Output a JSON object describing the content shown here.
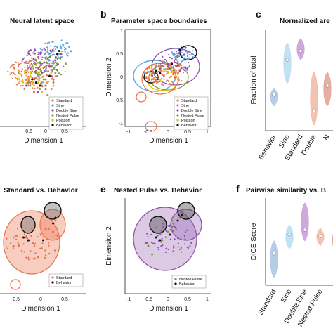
{
  "panels": {
    "a": {
      "title": "Neural latent space",
      "xlabel": "Dimension 1"
    },
    "b": {
      "letter": "b",
      "title": "Parameter space boundaries",
      "xlabel": "Dimension 1",
      "ylabel": "Dimension 2"
    },
    "c": {
      "letter": "c",
      "title": "Normalized are",
      "ylabel": "Fraction of total"
    },
    "d": {
      "title": "Standard vs. Behavior",
      "xlabel": "Dimension 1"
    },
    "e": {
      "letter": "e",
      "title": "Nested Pulse vs. Behavior",
      "xlabel": "Dimension 1",
      "ylabel": "Dimension 2"
    },
    "f": {
      "letter": "f",
      "title": "Pairwise similarity vs. B",
      "ylabel": "DICE Score"
    }
  },
  "legend_main": [
    "Standard",
    "Sine",
    "Double Sine",
    "Nested Pulse",
    "Poisson",
    "Behavior"
  ],
  "legend_d": [
    "Standard",
    "Behavior"
  ],
  "legend_e": [
    "Nested Pulse",
    "Behavior"
  ],
  "colors": {
    "standard": "#e8714a",
    "sine": "#58a8e0",
    "double_sine": "#8b4fa8",
    "nested_pulse": "#7a9a2a",
    "poisson": "#e8b800",
    "behavior": "#111111",
    "violin_behavior": "#a9c4e4",
    "violin_sine": "#b6dcf3",
    "violin_standard": "#c79ad6",
    "violin_double_sine": "#f2b7a2",
    "violin_nested_pulse": "#e3a090"
  },
  "chart_data": [
    {
      "panel": "a",
      "type": "scatter",
      "title": "Neural latent space",
      "xlabel": "Dimension 1",
      "xticks": [
        "-0.5",
        "0",
        "0.5"
      ],
      "series": [
        {
          "name": "Standard",
          "x": [
            -0.55,
            -0.4,
            -0.3,
            -0.1,
            0.0,
            0.15,
            0.3,
            0.05,
            -0.2,
            0.2
          ],
          "y": [
            0.15,
            0.25,
            0.1,
            0.2,
            0.3,
            0.15,
            0.35,
            0.05,
            0.3,
            0.25
          ]
        },
        {
          "name": "Sine",
          "x": [
            -0.4,
            -0.2,
            0.0,
            0.2,
            0.35,
            0.1,
            -0.1,
            0.3,
            0.45,
            0.25
          ],
          "y": [
            0.2,
            0.35,
            0.45,
            0.55,
            0.7,
            0.6,
            0.25,
            0.8,
            0.85,
            0.4
          ]
        },
        {
          "name": "Double Sine",
          "x": [
            -0.5,
            -0.3,
            -0.1,
            0.1,
            0.25,
            0.4,
            0.0,
            -0.2,
            0.3,
            0.15
          ],
          "y": [
            0.2,
            0.3,
            0.4,
            0.5,
            0.6,
            0.7,
            0.15,
            0.1,
            0.45,
            0.35
          ]
        },
        {
          "name": "Nested Pulse",
          "x": [
            -0.45,
            -0.25,
            -0.05,
            0.15,
            0.3,
            0.2,
            0.0,
            -0.15
          ],
          "y": [
            0.25,
            0.4,
            0.3,
            0.5,
            0.55,
            0.3,
            0.2,
            0.15
          ]
        },
        {
          "name": "Poisson",
          "x": [
            -0.3,
            -0.1,
            0.05,
            0.2,
            -0.2,
            0.1
          ],
          "y": [
            0.2,
            0.1,
            0.25,
            0.2,
            0.3,
            0.35
          ]
        },
        {
          "name": "Behavior",
          "x": [
            -0.35,
            -0.25,
            -0.15,
            0.1,
            0.3,
            0.35
          ],
          "y": [
            0.3,
            0.25,
            0.2,
            0.35,
            0.7,
            0.75
          ]
        }
      ]
    },
    {
      "panel": "b",
      "type": "scatter",
      "title": "Parameter space boundaries",
      "xlabel": "Dimension 1",
      "ylabel": "Dimension 2",
      "xlim": [
        -1,
        1
      ],
      "ylim": [
        -1,
        1
      ],
      "xticks": [
        "-1",
        "-0.5",
        "0",
        "0.5",
        "1"
      ],
      "yticks": [
        "-1",
        "-0.5",
        "0",
        "0.5",
        "1"
      ],
      "series": [
        {
          "name": "Standard",
          "x": [
            -0.55,
            -0.4,
            -0.3,
            -0.1,
            0.0,
            0.15,
            0.3
          ],
          "y": [
            0.0,
            0.1,
            -0.05,
            0.05,
            0.2,
            0.1,
            0.3
          ]
        },
        {
          "name": "Sine",
          "x": [
            -0.6,
            -0.3,
            -0.1,
            0.2,
            0.35,
            0.1
          ],
          "y": [
            0.1,
            0.25,
            0.35,
            0.45,
            0.6,
            0.55
          ]
        },
        {
          "name": "Double Sine",
          "x": [
            -0.4,
            -0.2,
            0.0,
            0.2,
            0.3,
            0.45
          ],
          "y": [
            0.05,
            0.2,
            0.3,
            0.4,
            0.55,
            0.65
          ]
        },
        {
          "name": "Nested Pulse",
          "x": [
            -0.35,
            -0.15,
            0.05,
            0.25
          ],
          "y": [
            0.1,
            0.25,
            0.2,
            0.45
          ]
        },
        {
          "name": "Poisson",
          "x": [
            -0.35,
            -0.2,
            0.0,
            0.1
          ],
          "y": [
            0.0,
            -0.05,
            0.1,
            0.15
          ]
        },
        {
          "name": "Behavior",
          "x": [
            -0.3,
            -0.2,
            0.1,
            0.3,
            0.35
          ],
          "y": [
            0.15,
            0.1,
            0.3,
            0.6,
            0.65
          ]
        }
      ]
    },
    {
      "panel": "c",
      "type": "violin",
      "title": "Normalized are",
      "ylabel": "Fraction of total",
      "categories": [
        "Behavior",
        "Sine",
        "Standard",
        "Double Sine",
        "Nested Pulse"
      ],
      "categories_visible": [
        "Behavior",
        "Sine",
        "Standard",
        "Double",
        "N"
      ],
      "medians": [
        0.32,
        0.63,
        0.71,
        0.18,
        0.4
      ],
      "ranges": [
        [
          0.22,
          0.38
        ],
        [
          0.42,
          0.78
        ],
        [
          0.63,
          0.82
        ],
        [
          0.05,
          0.52
        ],
        [
          0.22,
          0.52
        ]
      ],
      "ylim": [
        0,
        0.9
      ]
    },
    {
      "panel": "d",
      "type": "scatter",
      "title": "Standard vs. Behavior",
      "xlabel": "Dimension 1",
      "xticks": [
        "-0.5",
        "0",
        "0.5"
      ],
      "series": [
        {
          "name": "Standard",
          "x": [
            -0.45,
            -0.3,
            -0.15,
            0.0,
            0.1,
            0.25,
            0.3,
            -0.05
          ],
          "y": [
            0.0,
            0.15,
            0.05,
            0.2,
            0.3,
            0.25,
            0.45,
            -0.2
          ]
        },
        {
          "name": "Behavior",
          "x": [
            -0.35,
            -0.25,
            0.05,
            0.25,
            0.3
          ],
          "y": [
            0.15,
            0.1,
            0.1,
            0.4,
            0.5
          ]
        }
      ]
    },
    {
      "panel": "e",
      "type": "scatter",
      "title": "Nested Pulse vs. Behavior",
      "xlabel": "Dimension 1",
      "ylabel": "Dimension 2",
      "xticks": [
        "-1",
        "-0.5",
        "0",
        "0.5",
        "1"
      ],
      "series": [
        {
          "name": "Nested Pulse",
          "x": [
            -0.5,
            -0.3,
            -0.15,
            0.0,
            0.15,
            0.3,
            -0.4,
            0.1
          ],
          "y": [
            0.0,
            0.15,
            0.1,
            0.25,
            0.35,
            0.5,
            -0.15,
            0.45
          ]
        },
        {
          "name": "Behavior",
          "x": [
            -0.3,
            -0.2,
            0.05,
            0.25,
            0.35
          ],
          "y": [
            0.15,
            0.1,
            0.2,
            0.45,
            0.55
          ]
        }
      ]
    },
    {
      "panel": "f",
      "type": "violin",
      "title": "Pairwise similarity vs. B",
      "ylabel": "DICE Score",
      "categories": [
        "Standard",
        "Sine",
        "Double Sine",
        "Nested Pulse",
        ""
      ],
      "medians": [
        0.4,
        0.52,
        0.55,
        0.51,
        0.5
      ],
      "ranges": [
        [
          0.25,
          0.48
        ],
        [
          0.43,
          0.58
        ],
        [
          0.48,
          0.72
        ],
        [
          0.45,
          0.56
        ],
        [
          0.42,
          0.55
        ]
      ],
      "ylim": [
        0.2,
        0.75
      ]
    }
  ]
}
